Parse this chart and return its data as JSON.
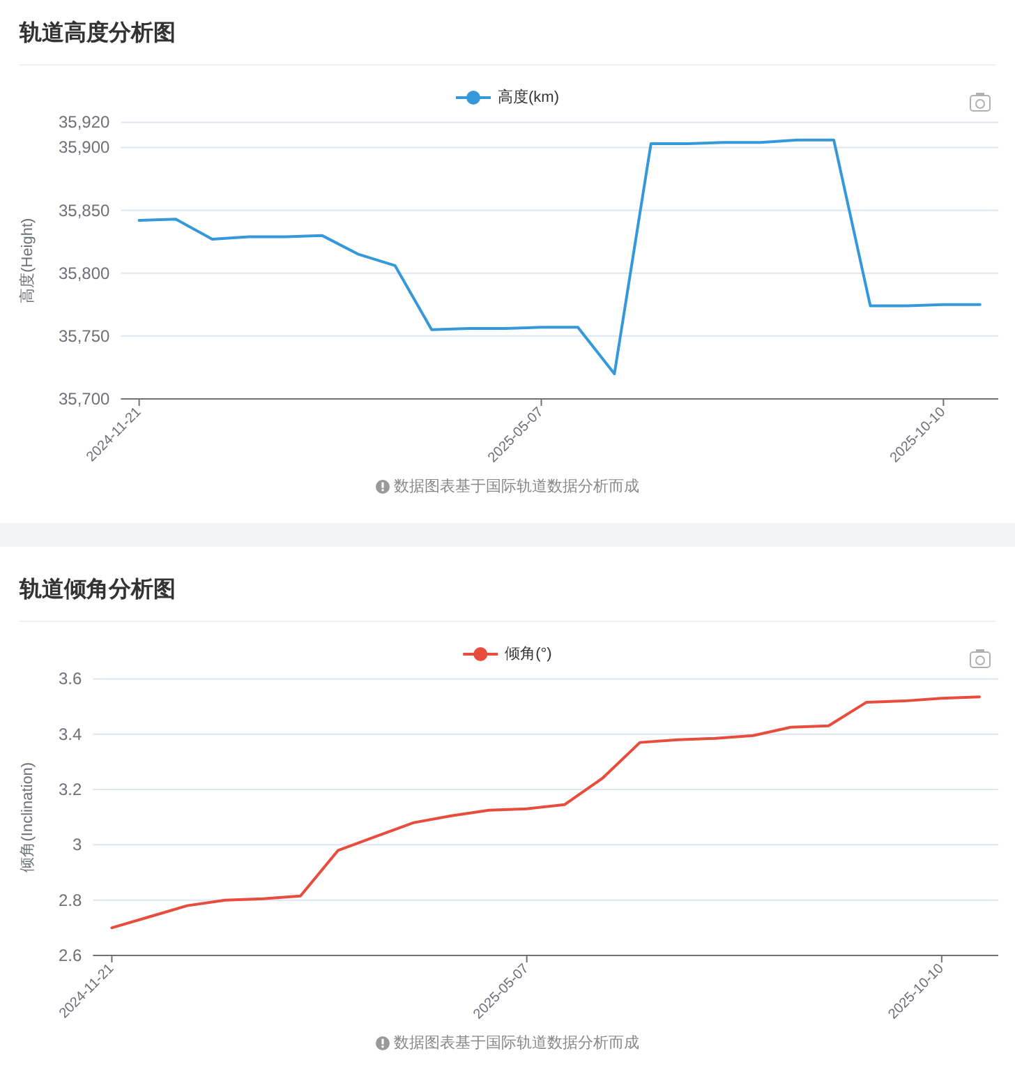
{
  "chart_data": [
    {
      "type": "line",
      "title": "轨道高度分析图",
      "ylabel": "高度(Height)",
      "categories": [
        "2024-11-21",
        null,
        null,
        null,
        null,
        null,
        null,
        null,
        null,
        null,
        null,
        "2025-05-07",
        null,
        null,
        null,
        null,
        null,
        null,
        null,
        null,
        null,
        null,
        "2025-10-10",
        null
      ],
      "series": [
        {
          "name": "高度(km)",
          "color": "#3498db",
          "values": [
            35842,
            35843,
            35827,
            35829,
            35829,
            35830,
            35815,
            35806,
            35755,
            35756,
            35756,
            35757,
            35757,
            35720,
            35903,
            35903,
            35904,
            35904,
            35906,
            35906,
            35774,
            35774,
            35775,
            35775
          ]
        }
      ],
      "ylim": [
        35700,
        35920
      ],
      "yticks": [
        {
          "value": 35700,
          "label": "35,700"
        },
        {
          "value": 35750,
          "label": "35,750"
        },
        {
          "value": 35800,
          "label": "35,800"
        },
        {
          "value": 35850,
          "label": "35,850"
        },
        {
          "value": 35900,
          "label": "35,900"
        },
        {
          "value": 35920,
          "label": "35,920"
        }
      ],
      "grid": "y",
      "legend": "top",
      "marker": "none",
      "line_style": "solid",
      "annotations": [
        "数据图表基于国际轨道数据分析而成"
      ]
    },
    {
      "type": "line",
      "title": "轨道倾角分析图",
      "ylabel": "倾角(Inclination)",
      "categories": [
        "2024-11-21",
        null,
        null,
        null,
        null,
        null,
        null,
        null,
        null,
        null,
        null,
        "2025-05-07",
        null,
        null,
        null,
        null,
        null,
        null,
        null,
        null,
        null,
        null,
        "2025-10-10",
        null
      ],
      "series": [
        {
          "name": "倾角(°)",
          "color": "#e74c3c",
          "values": [
            2.7,
            2.74,
            2.78,
            2.8,
            2.805,
            2.815,
            2.98,
            3.03,
            3.08,
            3.105,
            3.125,
            3.13,
            3.145,
            3.24,
            3.37,
            3.38,
            3.385,
            3.395,
            3.425,
            3.43,
            3.515,
            3.52,
            3.53,
            3.535
          ]
        }
      ],
      "ylim": [
        2.6,
        3.6
      ],
      "yticks": [
        2.6,
        2.8,
        3,
        3.2,
        3.4,
        3.6
      ],
      "grid": "y",
      "legend": "top",
      "marker": "none",
      "line_style": "solid",
      "annotations": [
        "数据图表基于国际轨道数据分析而成"
      ]
    }
  ]
}
